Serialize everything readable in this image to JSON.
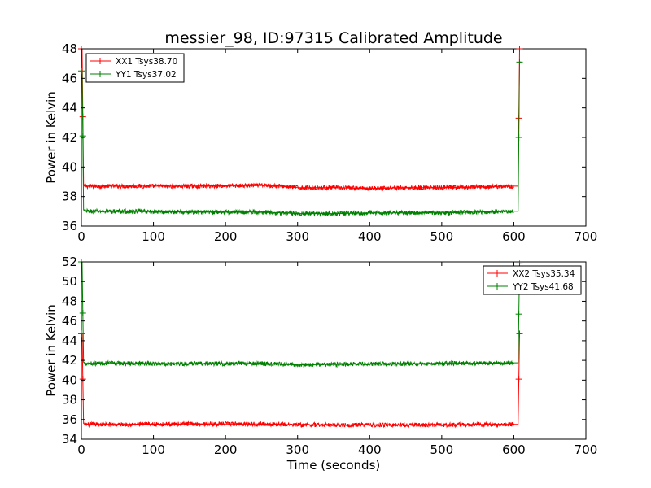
{
  "chart_data": [
    {
      "type": "line",
      "title": "messier_98, ID:97315 Calibrated Amplitude",
      "xlabel": "",
      "ylabel": "Power in Kelvin",
      "xlim": [
        0,
        700
      ],
      "ylim": [
        36,
        48
      ],
      "xticks": [
        0,
        100,
        200,
        300,
        400,
        500,
        600,
        700
      ],
      "yticks": [
        36,
        38,
        40,
        42,
        44,
        46,
        48
      ],
      "grid": false,
      "legend": "top-left",
      "series": [
        {
          "name": "XX1 Tsys38.70",
          "color": "#ff0000",
          "x": [
            0,
            1,
            2,
            3,
            4,
            5,
            50,
            150,
            250,
            280,
            300,
            350,
            400,
            450,
            500,
            550,
            600,
            605,
            606,
            607,
            608,
            609,
            610
          ],
          "y": [
            48,
            48,
            43.4,
            38.8,
            38.7,
            38.7,
            38.7,
            38.7,
            38.75,
            38.7,
            38.6,
            38.6,
            38.55,
            38.6,
            38.6,
            38.65,
            38.7,
            38.7,
            38.7,
            43.3,
            48,
            48,
            48
          ]
        },
        {
          "name": "YY1 Tsys37.02",
          "color": "#008000",
          "x": [
            0,
            1,
            2,
            3,
            4,
            5,
            50,
            150,
            250,
            280,
            300,
            350,
            400,
            450,
            500,
            550,
            600,
            605,
            606,
            607,
            608,
            609,
            610
          ],
          "y": [
            46.5,
            46.5,
            42.1,
            37.1,
            37.05,
            37.0,
            37.0,
            36.95,
            36.95,
            36.9,
            36.85,
            36.85,
            36.9,
            36.9,
            36.9,
            36.95,
            37.0,
            37.0,
            37.0,
            42.0,
            47.1,
            47.1,
            47.1
          ]
        }
      ]
    },
    {
      "type": "line",
      "title": "",
      "xlabel": "Time (seconds)",
      "ylabel": "Power in Kelvin",
      "xlim": [
        0,
        700
      ],
      "ylim": [
        34,
        52
      ],
      "xticks": [
        0,
        100,
        200,
        300,
        400,
        500,
        600,
        700
      ],
      "yticks": [
        34,
        36,
        38,
        40,
        42,
        44,
        46,
        48,
        50,
        52
      ],
      "grid": false,
      "legend": "top-right",
      "series": [
        {
          "name": "XX2 Tsys35.34",
          "color": "#ff0000",
          "x": [
            0,
            1,
            2,
            3,
            4,
            5,
            50,
            150,
            250,
            280,
            300,
            350,
            400,
            450,
            500,
            550,
            600,
            605,
            606,
            607,
            608,
            609,
            610
          ],
          "y": [
            44.7,
            44.7,
            40.1,
            35.6,
            35.55,
            35.5,
            35.5,
            35.55,
            35.55,
            35.5,
            35.45,
            35.45,
            35.45,
            35.45,
            35.45,
            35.5,
            35.5,
            35.5,
            35.5,
            40.1,
            44.7,
            44.7,
            44.7
          ]
        },
        {
          "name": "YY2 Tsys41.68",
          "color": "#008000",
          "x": [
            0,
            1,
            2,
            3,
            4,
            5,
            50,
            150,
            250,
            280,
            300,
            350,
            400,
            450,
            500,
            550,
            600,
            605,
            606,
            607,
            608,
            609,
            610
          ],
          "y": [
            52,
            52,
            46.8,
            41.8,
            41.75,
            41.7,
            41.7,
            41.65,
            41.7,
            41.6,
            41.55,
            41.6,
            41.65,
            41.65,
            41.7,
            41.7,
            41.75,
            41.75,
            41.75,
            46.7,
            51.8,
            51.8,
            51.8
          ]
        }
      ]
    }
  ]
}
